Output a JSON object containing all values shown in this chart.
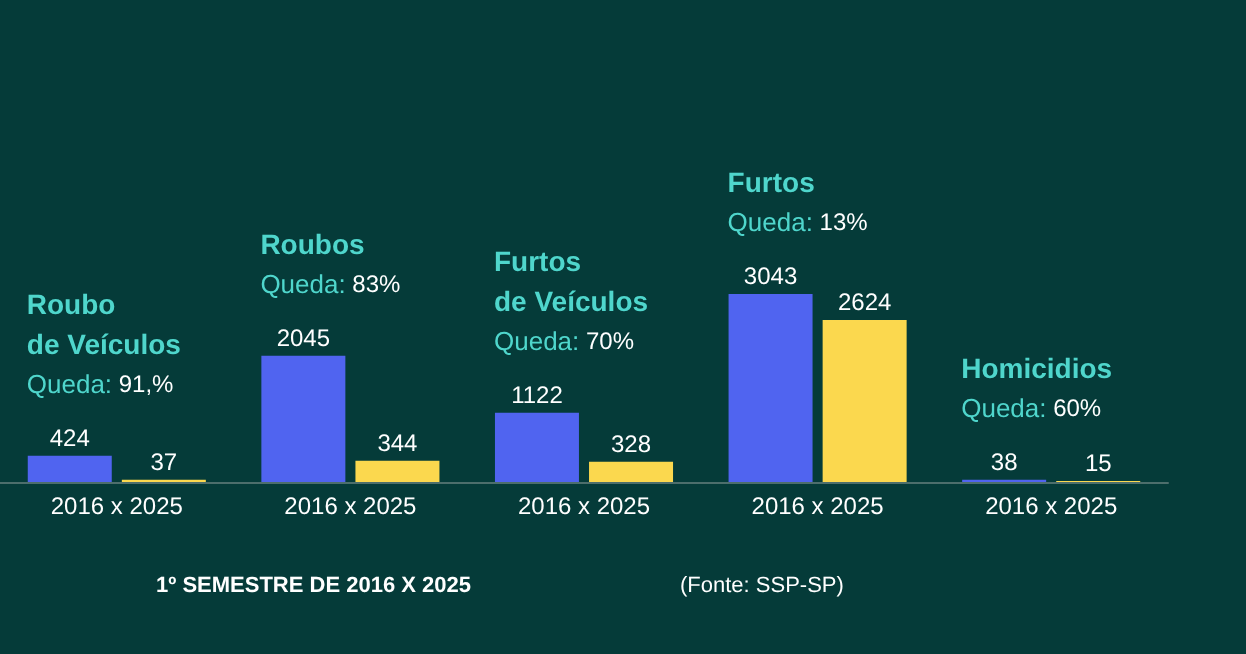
{
  "chart_data": {
    "type": "bar",
    "categories": [
      "2016 x 2025",
      "2016 x 2025",
      "2016 x 2025",
      "2016 x 2025",
      "2016 x 2025"
    ],
    "series": [
      {
        "color": "#5064f0",
        "values": [
          424,
          2045,
          1122,
          3043,
          38
        ]
      },
      {
        "color": "#fbd84e",
        "values": [
          37,
          344,
          328,
          2624,
          15
        ]
      }
    ],
    "data_labels": true,
    "xlabel": "1º SEMESTRE DE 2016 X 2025",
    "annotations": [
      "Roubo\nde Veículos\nQueda: 91,%",
      "Roubos\nQueda: 83%",
      "Furtos\nde Veículos\nQueda: 70%",
      "Furtos\nQueda: 13%",
      "Homicidios\nQueda: 60%",
      "(Fonte: SSP-SP)"
    ]
  }
}
